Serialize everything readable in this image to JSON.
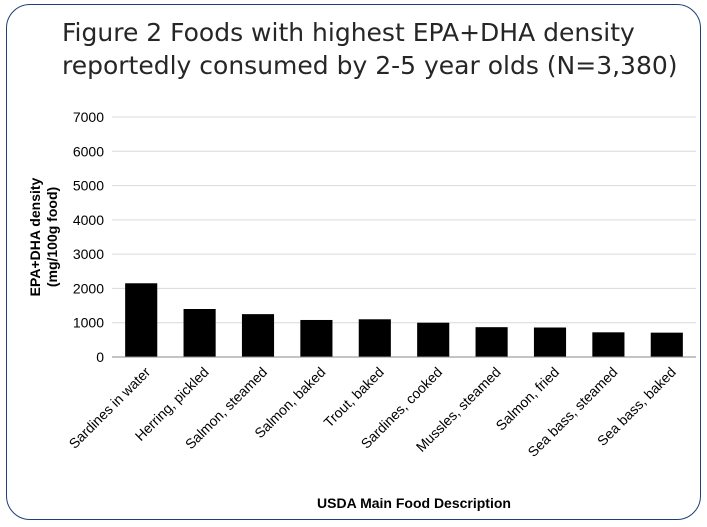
{
  "chart_data": {
    "type": "bar",
    "title_prefix": "Figure 2",
    "title": "Foods with highest EPA+DHA density reportedly consumed by 2-5 year olds (N=3,380)",
    "xlabel": "USDA Main Food Description",
    "ylabel_line1": "EPA+DHA density",
    "ylabel_line2": "(mg/100g food)",
    "ylim": [
      0,
      7000
    ],
    "yticks": [
      0,
      1000,
      2000,
      3000,
      4000,
      5000,
      6000,
      7000
    ],
    "categories": [
      "Sardines in water",
      "Herring, pickled",
      "Salmon, steamed",
      "Salmon, baked",
      "Trout, baked",
      "Sardines, cooked",
      "Mussles, steamed",
      "Salmon, fried",
      "Sea bass, steamed",
      "Sea bass, baked"
    ],
    "values": [
      2150,
      1400,
      1250,
      1080,
      1100,
      1000,
      870,
      860,
      720,
      710
    ],
    "bar_color": "#000000",
    "gridlines": true
  }
}
